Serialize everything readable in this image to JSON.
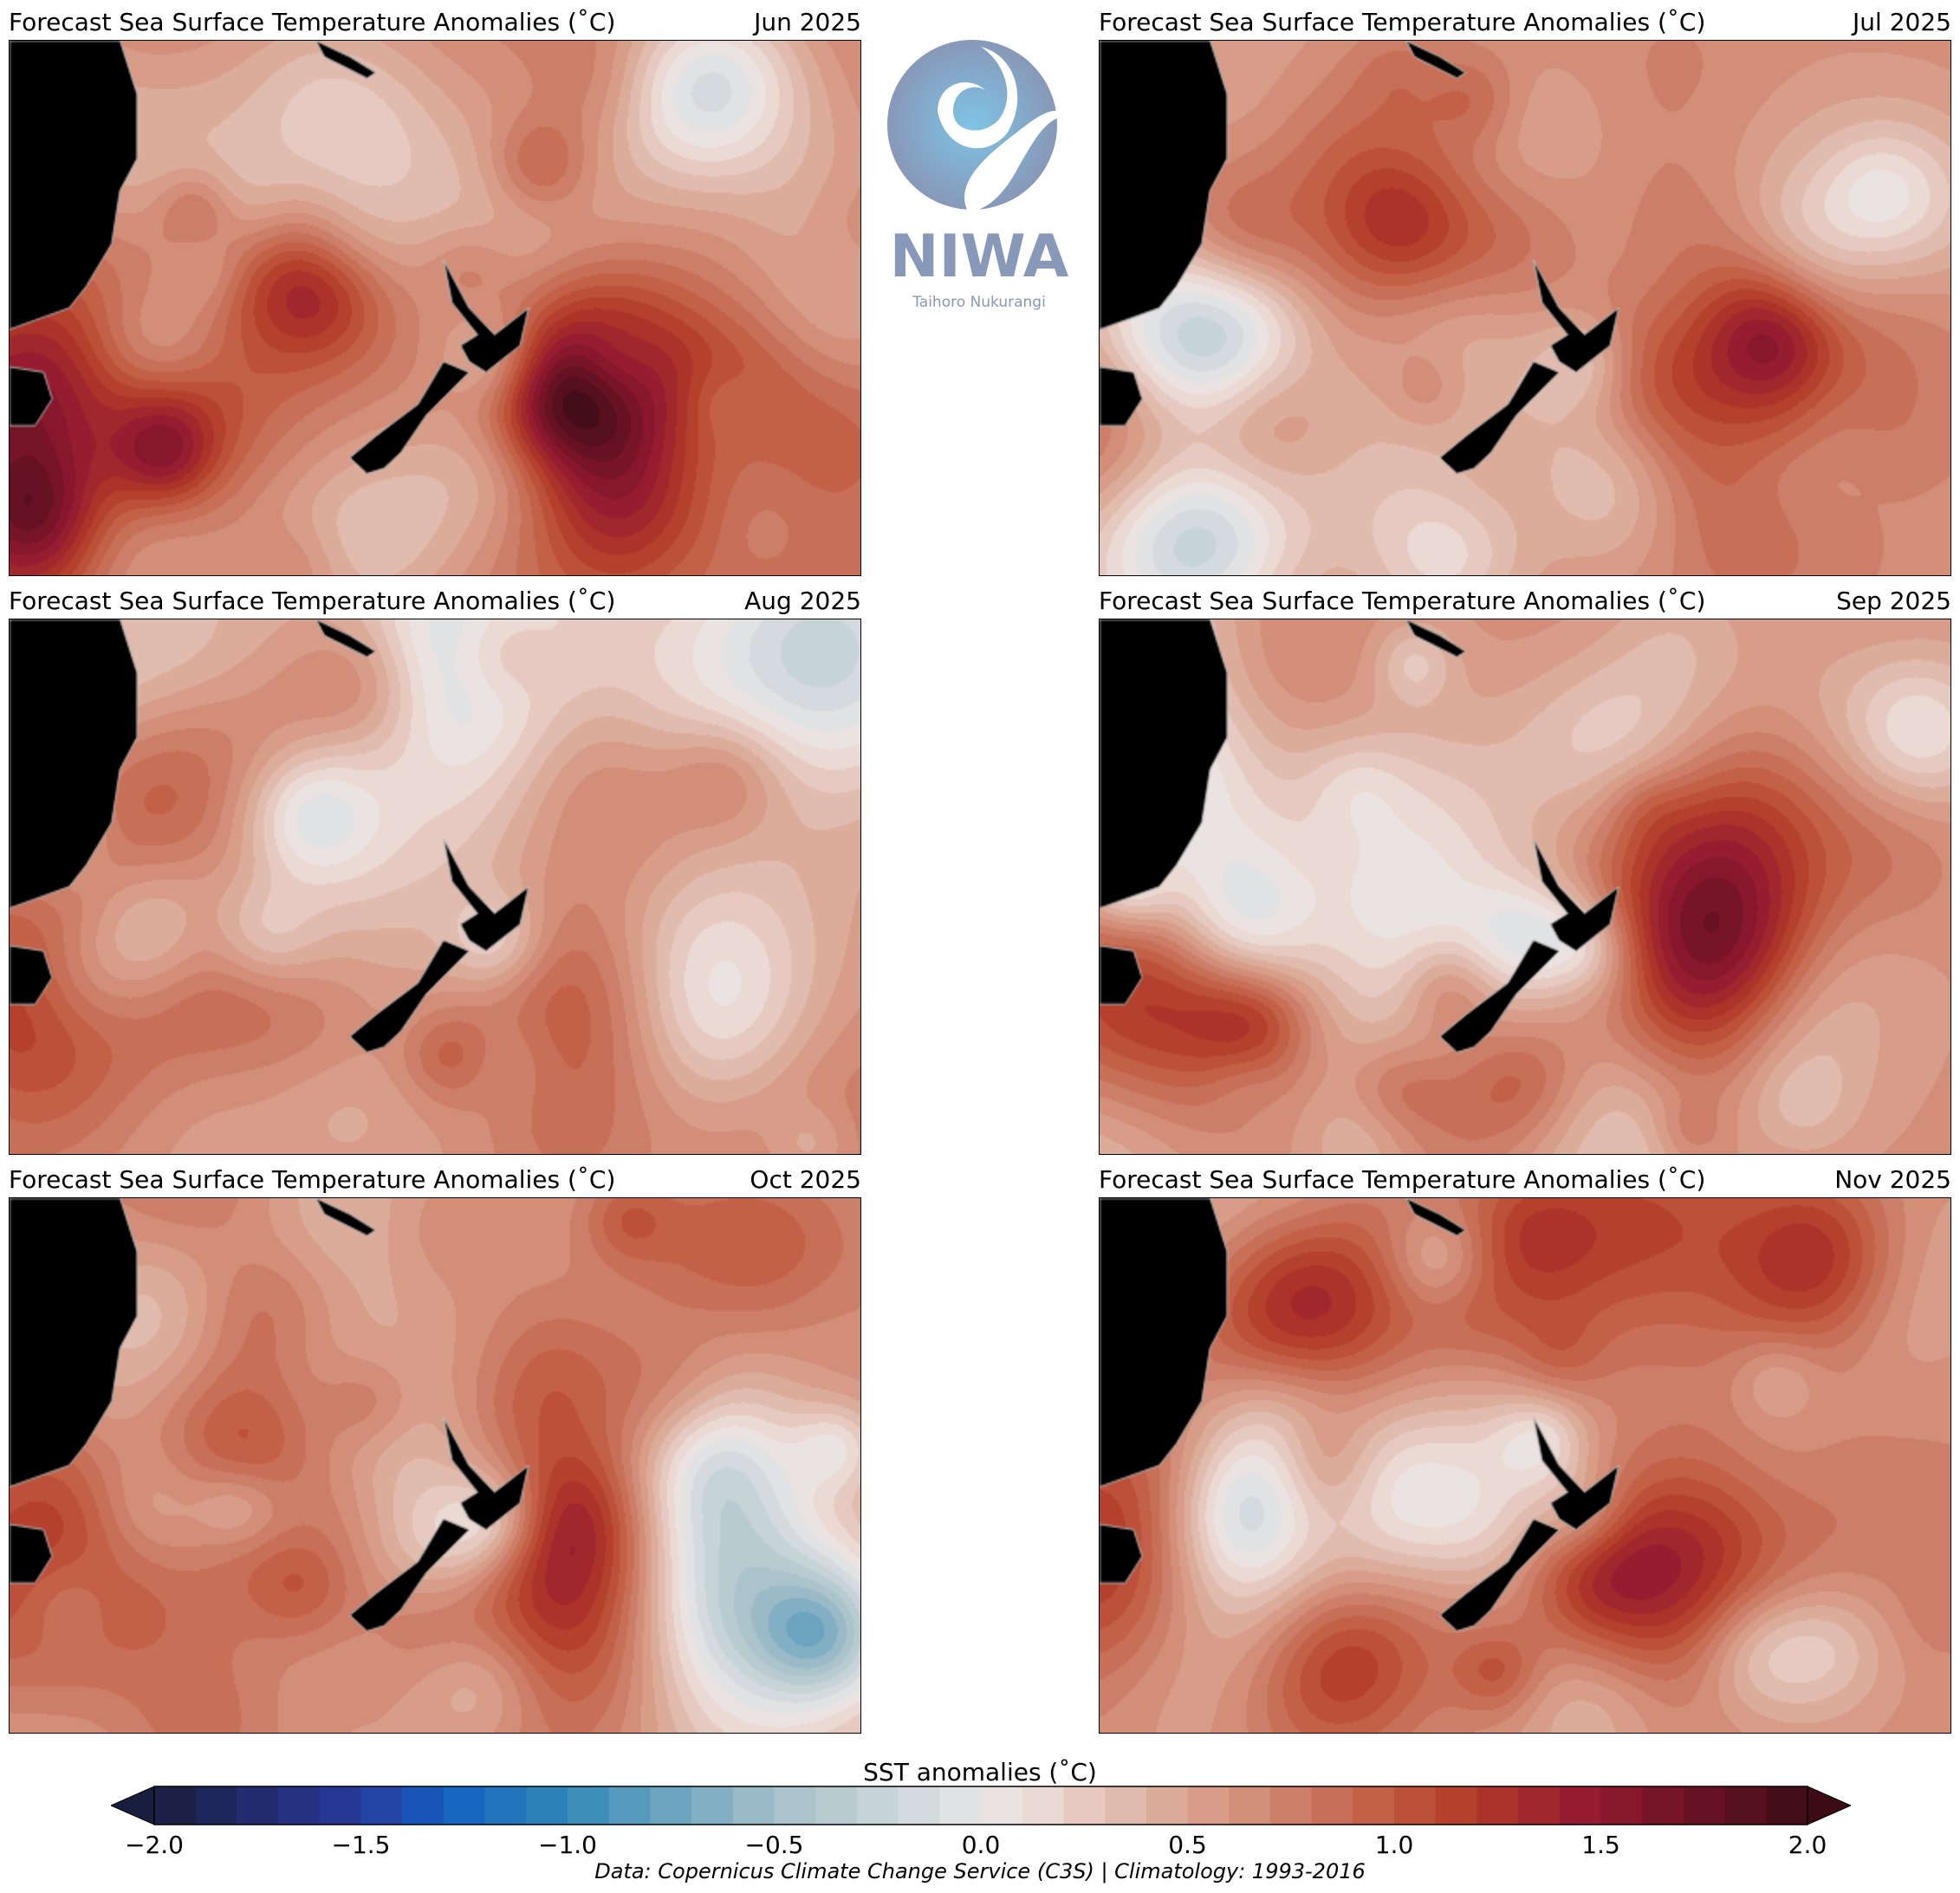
{
  "panels": [
    {
      "title": "Forecast Sea Surface Temperature Anomalies (˚C)",
      "month": "Jun 2025",
      "mean_anomaly": 0.8
    },
    {
      "title": "Forecast Sea Surface Temperature Anomalies (˚C)",
      "month": "Jul 2025",
      "mean_anomaly": 0.65
    },
    {
      "title": "Forecast Sea Surface Temperature Anomalies (˚C)",
      "month": "Aug 2025",
      "mean_anomaly": 0.6
    },
    {
      "title": "Forecast Sea Surface Temperature Anomalies (˚C)",
      "month": "Sep 2025",
      "mean_anomaly": 0.6
    },
    {
      "title": "Forecast Sea Surface Temperature Anomalies (˚C)",
      "month": "Oct 2025",
      "mean_anomaly": 0.6
    },
    {
      "title": "Forecast Sea Surface Temperature Anomalies (˚C)",
      "month": "Nov 2025",
      "mean_anomaly": 0.65
    }
  ],
  "logo": {
    "name": "NIWA",
    "subtitle": "Taihoro Nukurangi"
  },
  "chart_data": {
    "type": "heatmap",
    "colorbar": {
      "label": "SST anomalies (˚C)",
      "range": [
        -2.0,
        2.0
      ],
      "step": 0.1,
      "extend": "both",
      "ticks": [
        "−2.0",
        "−1.5",
        "−1.0",
        "−0.5",
        "0.0",
        "0.5",
        "1.0",
        "1.5",
        "2.0"
      ],
      "tick_values": [
        -2.0,
        -1.5,
        -1.0,
        -0.5,
        0.0,
        0.5,
        1.0,
        1.5,
        2.0
      ],
      "colormap_stops": [
        [
          -2.0,
          "#1a1e3e"
        ],
        [
          -1.5,
          "#2a3a9e"
        ],
        [
          -1.3,
          "#1060c0"
        ],
        [
          -1.0,
          "#3388b8"
        ],
        [
          -0.5,
          "#a4bfc8"
        ],
        [
          0.0,
          "#e8e6e6"
        ],
        [
          0.1,
          "#eee0de"
        ],
        [
          0.5,
          "#d9a591"
        ],
        [
          1.0,
          "#c05840"
        ],
        [
          1.2,
          "#b03828"
        ],
        [
          1.5,
          "#901830"
        ],
        [
          2.0,
          "#3c0c14"
        ]
      ]
    },
    "land_color": "#000000"
  },
  "credit": "Data: Copernicus Climate Change Service (C3S) | Climatology: 1993-2016"
}
